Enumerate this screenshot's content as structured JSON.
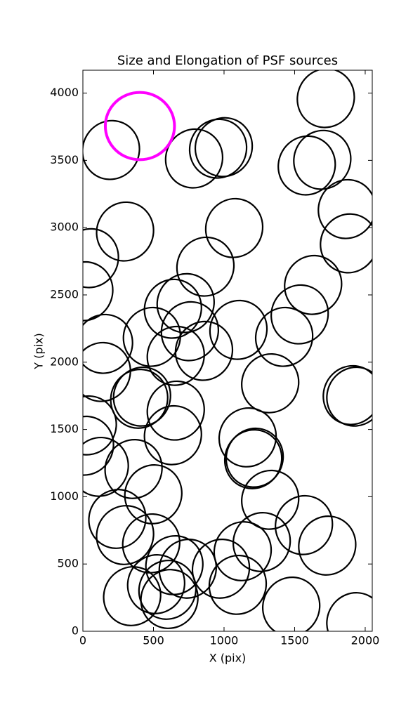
{
  "chart_data": {
    "type": "ellipse",
    "title": "Size and Elongation of PSF sources",
    "x_label": "X (pix)",
    "y_label": "Y (pix)",
    "xlim": [
      0,
      2050
    ],
    "ylim": [
      0,
      4170
    ],
    "xticks": [
      0,
      500,
      1000,
      1500,
      2000
    ],
    "yticks": [
      0,
      500,
      1000,
      1500,
      2000,
      2500,
      3000,
      3500,
      4000
    ],
    "series": [
      {
        "color": "#000000",
        "width": 400,
        "height": 440,
        "angle": -25,
        "x": [
          1721,
          199,
          788,
          958,
          998,
          1586,
          1696,
          1870,
          299,
          50,
          1072,
          1885,
          868,
          10,
          1631,
          728,
          638,
          1536,
          1102,
          1426,
          758,
          489,
          150,
          658,
          858,
          135,
          1327,
          1905,
          1930,
          419,
          399,
          658,
          35,
          638,
          1167,
          1207,
          1217,
          15,
          120,
          359,
          499,
          1327,
          244,
          299,
          1566,
          1731,
          484,
          1267,
          1132,
          648,
          743,
          978,
          1097,
          519,
          599,
          613,
          349,
          1476,
          1930
        ],
        "y": [
          3963,
          3577,
          3514,
          3587,
          3598,
          3462,
          3504,
          3138,
          2971,
          2773,
          2997,
          2883,
          2710,
          2527,
          2574,
          2439,
          2397,
          2355,
          2240,
          2188,
          2230,
          2188,
          2136,
          2047,
          2084,
          1927,
          1843,
          1755,
          1744,
          1744,
          1728,
          1640,
          1530,
          1457,
          1441,
          1279,
          1290,
          1379,
          1222,
          1206,
          1018,
          977,
          835,
          715,
          789,
          637,
          653,
          663,
          595,
          491,
          465,
          465,
          345,
          350,
          308,
          240,
          261,
          183,
          68
        ]
      },
      {
        "color": "#ff00ff",
        "width": 490,
        "height": 500,
        "angle": 0,
        "x": [
          404
        ],
        "y": [
          3755
        ]
      }
    ]
  }
}
